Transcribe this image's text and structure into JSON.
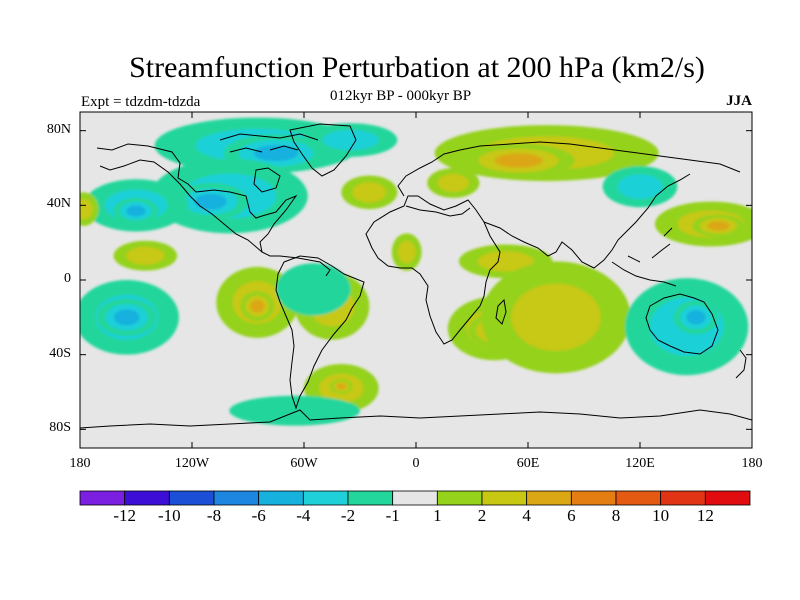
{
  "title": "Streamfunction Perturbation at 200 hPa (km2/s)",
  "subtitle": "012kyr BP - 000kyr BP",
  "experiment": "Expt = tdzdm-tdzda",
  "season": "JJA",
  "lat_ticks": [
    {
      "value": 80,
      "label": "80N"
    },
    {
      "value": 40,
      "label": "40N"
    },
    {
      "value": 0,
      "label": "0"
    },
    {
      "value": -40,
      "label": "40S"
    },
    {
      "value": -80,
      "label": "80S"
    }
  ],
  "lon_ticks": [
    {
      "value": -180,
      "label": "180"
    },
    {
      "value": -120,
      "label": "120W"
    },
    {
      "value": -60,
      "label": "60W"
    },
    {
      "value": 0,
      "label": "0"
    },
    {
      "value": 60,
      "label": "60E"
    },
    {
      "value": 120,
      "label": "120E"
    },
    {
      "value": 180,
      "label": "180"
    }
  ],
  "colorbar": {
    "colors": [
      "#7b1fe0",
      "#3d0fd6",
      "#1b4fd6",
      "#1c86e0",
      "#17b1de",
      "#1fd0d8",
      "#23d69b",
      "#e6e6e6",
      "#94d21c",
      "#c8c813",
      "#dca715",
      "#e57e12",
      "#e55a12",
      "#e03414",
      "#e00c10"
    ],
    "labels": [
      {
        "value": -12,
        "label": "-12"
      },
      {
        "value": -10,
        "label": "-10"
      },
      {
        "value": -8,
        "label": "-8"
      },
      {
        "value": -6,
        "label": "-6"
      },
      {
        "value": -4,
        "label": "-4"
      },
      {
        "value": -2,
        "label": "-2"
      },
      {
        "value": -1,
        "label": "-1"
      },
      {
        "value": 1,
        "label": "1"
      },
      {
        "value": 2,
        "label": "2"
      },
      {
        "value": 4,
        "label": "4"
      },
      {
        "value": 6,
        "label": "6"
      },
      {
        "value": 8,
        "label": "8"
      },
      {
        "value": 10,
        "label": "10"
      },
      {
        "value": 12,
        "label": "12"
      }
    ]
  },
  "features": [
    {
      "name": "arctic-canada-negative",
      "lon": -85,
      "lat": 72,
      "level": -3,
      "rx": 55,
      "ry": 15
    },
    {
      "name": "arctic-canada-core",
      "lon": -75,
      "lat": 68,
      "level": -5,
      "rx": 28,
      "ry": 10
    },
    {
      "name": "greenland-negative",
      "lon": -35,
      "lat": 75,
      "level": -3,
      "rx": 25,
      "ry": 9
    },
    {
      "name": "north-america-negative",
      "lon": -100,
      "lat": 45,
      "level": -3,
      "rx": 42,
      "ry": 20
    },
    {
      "name": "north-america-core",
      "lon": -110,
      "lat": 42,
      "level": -5,
      "rx": 20,
      "ry": 10
    },
    {
      "name": "north-pacific-negative",
      "lon": -150,
      "lat": 40,
      "level": -3,
      "rx": 28,
      "ry": 14
    },
    {
      "name": "north-pacific-core",
      "lon": -150,
      "lat": 37,
      "level": -5,
      "rx": 12,
      "ry": 7
    },
    {
      "name": "dateline-positive-n",
      "lon": -178,
      "lat": 38,
      "level": 3,
      "rx": 8,
      "ry": 9
    },
    {
      "name": "tropical-pacific-positive",
      "lon": -145,
      "lat": 13,
      "level": 2.5,
      "rx": 17,
      "ry": 8
    },
    {
      "name": "south-pacific-negative",
      "lon": -155,
      "lat": -20,
      "level": -3,
      "rx": 28,
      "ry": 20
    },
    {
      "name": "south-pacific-core",
      "lon": -155,
      "lat": -20,
      "level": -5,
      "rx": 16,
      "ry": 10
    },
    {
      "name": "south-america-positive",
      "lon": -85,
      "lat": -12,
      "level": 3,
      "rx": 22,
      "ry": 19
    },
    {
      "name": "south-america-core",
      "lon": -85,
      "lat": -14,
      "level": 5,
      "rx": 9,
      "ry": 8
    },
    {
      "name": "south-atlantic-positive",
      "lon": -45,
      "lat": -14,
      "level": 2.5,
      "rx": 20,
      "ry": 18
    },
    {
      "name": "south-atlantic-negative",
      "lon": -55,
      "lat": -5,
      "level": -1.5,
      "rx": 20,
      "ry": 14
    },
    {
      "name": "atlantic-positive-n",
      "lon": -25,
      "lat": 47,
      "level": 3,
      "rx": 15,
      "ry": 9
    },
    {
      "name": "tropical-atlantic-positive",
      "lon": -5,
      "lat": 15,
      "level": 2,
      "rx": 8,
      "ry": 10
    },
    {
      "name": "southern-ocean-atlantic-positive",
      "lon": -40,
      "lat": -58,
      "level": 3,
      "rx": 20,
      "ry": 13
    },
    {
      "name": "southern-ocean-atlantic-core",
      "lon": -40,
      "lat": -57,
      "level": 5,
      "rx": 6,
      "ry": 4
    },
    {
      "name": "southern-ocean-negative",
      "lon": -65,
      "lat": -70,
      "level": -1.5,
      "rx": 35,
      "ry": 8
    },
    {
      "name": "eurasia-positive",
      "lon": 70,
      "lat": 68,
      "level": 3,
      "rx": 60,
      "ry": 15
    },
    {
      "name": "eurasia-core",
      "lon": 55,
      "lat": 64,
      "level": 5,
      "rx": 30,
      "ry": 9
    },
    {
      "name": "europe-positive",
      "lon": 20,
      "lat": 52,
      "level": 2,
      "rx": 14,
      "ry": 8
    },
    {
      "name": "east-asia-negative",
      "lon": 120,
      "lat": 50,
      "level": -3,
      "rx": 20,
      "ry": 11
    },
    {
      "name": "west-pacific-positive",
      "lon": 158,
      "lat": 30,
      "level": 3,
      "rx": 30,
      "ry": 12
    },
    {
      "name": "west-pacific-core",
      "lon": 162,
      "lat": 29,
      "level": 5,
      "rx": 14,
      "ry": 6
    },
    {
      "name": "africa-positive",
      "lon": 42,
      "lat": -26,
      "level": 3,
      "rx": 25,
      "ry": 17
    },
    {
      "name": "africa-core",
      "lon": 42,
      "lat": -27,
      "level": 5,
      "rx": 14,
      "ry": 9
    },
    {
      "name": "north-africa-positive",
      "lon": 48,
      "lat": 10,
      "level": 2,
      "rx": 25,
      "ry": 9
    },
    {
      "name": "indian-ocean-positive",
      "lon": 75,
      "lat": -20,
      "level": 2,
      "rx": 40,
      "ry": 30
    },
    {
      "name": "australia-negative",
      "lon": 145,
      "lat": -25,
      "level": -2.5,
      "rx": 33,
      "ry": 26
    },
    {
      "name": "australia-core",
      "lon": 150,
      "lat": -20,
      "level": -4,
      "rx": 12,
      "ry": 9
    }
  ]
}
